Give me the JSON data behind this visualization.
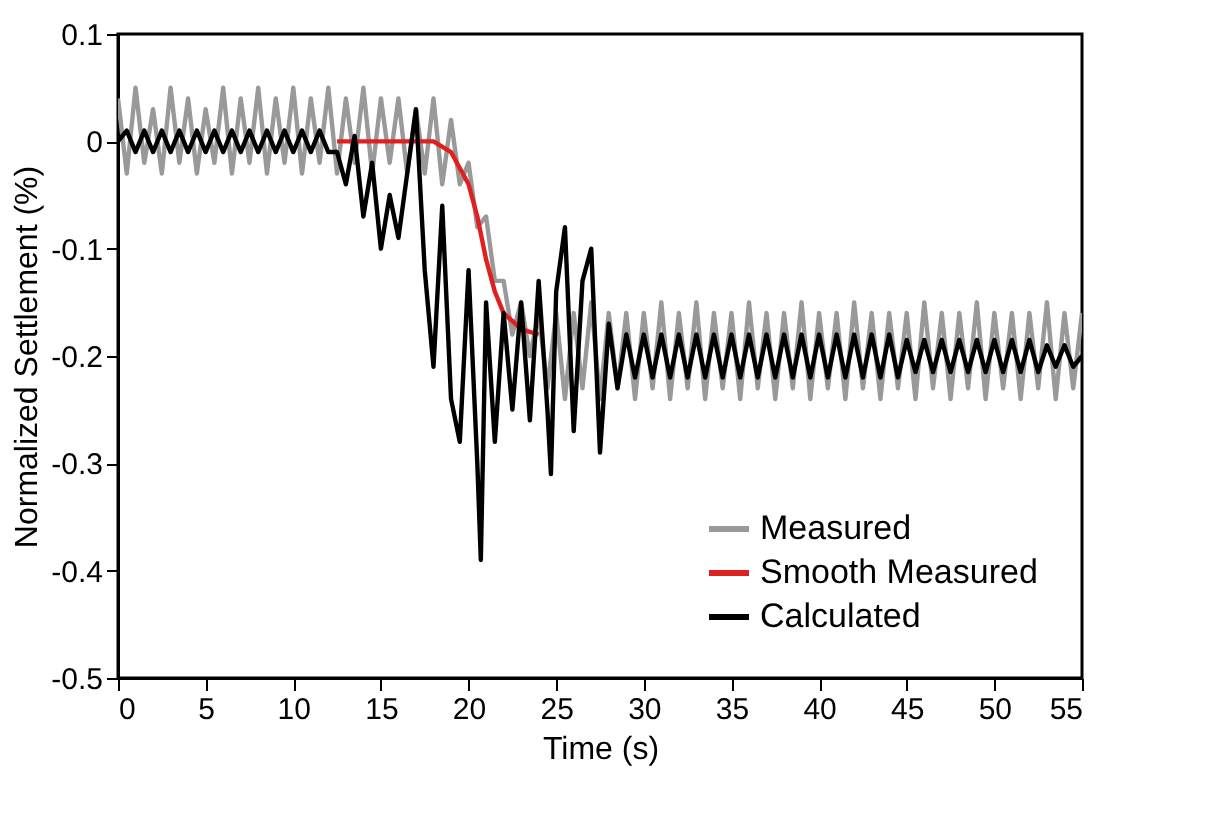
{
  "chart_data": {
    "type": "line",
    "xlabel": "Time (s)",
    "ylabel": "Normalized Settlement (%)",
    "xlim": [
      0,
      55
    ],
    "xticks": [
      0,
      5,
      10,
      15,
      20,
      25,
      30,
      35,
      40,
      45,
      50,
      55
    ],
    "ylim": [
      -0.5,
      0.1
    ],
    "yticks": [
      -0.5,
      -0.4,
      -0.3,
      -0.2,
      -0.1,
      0,
      0.1
    ],
    "grid": false,
    "legend": "bottom right",
    "marker": "none",
    "line_style": "solid",
    "series": [
      {
        "name": "Measured",
        "color": "#999999",
        "x": [
          0,
          0.5,
          1,
          1.5,
          2,
          2.5,
          3,
          3.5,
          4,
          4.5,
          5,
          5.5,
          6,
          6.5,
          7,
          7.5,
          8,
          8.5,
          9,
          9.5,
          10,
          10.5,
          11,
          11.5,
          12,
          12.5,
          13,
          13.5,
          14,
          14.5,
          15,
          15.5,
          16,
          16.5,
          17,
          17.5,
          18,
          18.5,
          19,
          19.5,
          20,
          20.5,
          21,
          21.5,
          22,
          22.5,
          23,
          23.5,
          24,
          24.5,
          25,
          25.5,
          26,
          26.5,
          27,
          27.5,
          28,
          28.5,
          29,
          29.5,
          30,
          30.5,
          31,
          31.5,
          32,
          32.5,
          33,
          33.5,
          34,
          34.5,
          35,
          35.5,
          36,
          36.5,
          37,
          37.5,
          38,
          38.5,
          39,
          39.5,
          40,
          40.5,
          41,
          41.5,
          42,
          42.5,
          43,
          43.5,
          44,
          44.5,
          45,
          45.5,
          46,
          46.5,
          47,
          47.5,
          48,
          48.5,
          49,
          49.5,
          50,
          50.5,
          51,
          51.5,
          52,
          52.5,
          53,
          53.5,
          54,
          54.5,
          55
        ],
        "values": [
          0.04,
          -0.03,
          0.05,
          -0.02,
          0.03,
          -0.03,
          0.05,
          -0.02,
          0.04,
          -0.03,
          0.03,
          -0.02,
          0.05,
          -0.03,
          0.04,
          -0.02,
          0.05,
          -0.03,
          0.04,
          -0.02,
          0.05,
          -0.03,
          0.04,
          -0.02,
          0.05,
          -0.03,
          0.04,
          -0.02,
          0.05,
          -0.03,
          0.04,
          -0.02,
          0.04,
          -0.03,
          0.03,
          -0.03,
          0.04,
          -0.04,
          0.02,
          -0.04,
          -0.02,
          -0.08,
          -0.07,
          -0.13,
          -0.13,
          -0.18,
          -0.15,
          -0.2,
          -0.16,
          -0.23,
          -0.16,
          -0.24,
          -0.16,
          -0.23,
          -0.15,
          -0.24,
          -0.16,
          -0.23,
          -0.16,
          -0.24,
          -0.16,
          -0.23,
          -0.15,
          -0.24,
          -0.16,
          -0.23,
          -0.15,
          -0.24,
          -0.16,
          -0.23,
          -0.16,
          -0.24,
          -0.15,
          -0.23,
          -0.16,
          -0.24,
          -0.16,
          -0.23,
          -0.15,
          -0.24,
          -0.16,
          -0.23,
          -0.16,
          -0.24,
          -0.15,
          -0.23,
          -0.16,
          -0.24,
          -0.16,
          -0.23,
          -0.16,
          -0.24,
          -0.15,
          -0.23,
          -0.16,
          -0.24,
          -0.16,
          -0.23,
          -0.15,
          -0.24,
          -0.16,
          -0.23,
          -0.16,
          -0.24,
          -0.16,
          -0.23,
          -0.15,
          -0.24,
          -0.16,
          -0.23,
          -0.16
        ]
      },
      {
        "name": "Smooth Measured",
        "color": "#e02020",
        "x": [
          12.5,
          18,
          19,
          20,
          20.5,
          21,
          21.5,
          22,
          23,
          24
        ],
        "values": [
          0,
          0,
          -0.01,
          -0.04,
          -0.07,
          -0.11,
          -0.14,
          -0.16,
          -0.175,
          -0.18
        ]
      },
      {
        "name": "Calculated",
        "color": "#000000",
        "x": [
          0,
          0.5,
          1,
          1.5,
          2,
          2.5,
          3,
          3.5,
          4,
          4.5,
          5,
          5.5,
          6,
          6.5,
          7,
          7.5,
          8,
          8.5,
          9,
          9.5,
          10,
          10.5,
          11,
          11.5,
          12,
          12.5,
          13,
          13.5,
          14,
          14.5,
          15,
          15.5,
          16,
          16.5,
          17,
          17.5,
          18,
          18.5,
          19,
          19.5,
          20,
          20.5,
          20.7,
          21,
          21.5,
          22,
          22.5,
          23,
          23.5,
          24,
          24.5,
          24.7,
          25,
          25.5,
          26,
          26.5,
          27,
          27.5,
          28,
          28.5,
          29,
          29.5,
          30,
          30.5,
          31,
          31.5,
          32,
          32.5,
          33,
          33.5,
          34,
          34.5,
          35,
          35.5,
          36,
          36.5,
          37,
          37.5,
          38,
          38.5,
          39,
          39.5,
          40,
          40.5,
          41,
          41.5,
          42,
          42.5,
          43,
          43.5,
          44,
          44.5,
          45,
          45.5,
          46,
          46.5,
          47,
          47.5,
          48,
          48.5,
          49,
          49.5,
          50,
          50.5,
          51,
          51.5,
          52,
          52.5,
          53,
          53.5,
          54,
          54.5,
          55
        ],
        "values": [
          0,
          0.01,
          -0.01,
          0.01,
          -0.01,
          0.01,
          -0.01,
          0.01,
          -0.01,
          0.01,
          -0.01,
          0.01,
          -0.01,
          0.01,
          -0.01,
          0.01,
          -0.01,
          0.01,
          -0.01,
          0.01,
          -0.01,
          0.01,
          -0.01,
          0.01,
          -0.01,
          -0.01,
          -0.04,
          0.005,
          -0.07,
          -0.02,
          -0.1,
          -0.05,
          -0.09,
          -0.03,
          0.03,
          -0.12,
          -0.21,
          -0.06,
          -0.24,
          -0.28,
          -0.12,
          -0.3,
          -0.39,
          -0.15,
          -0.28,
          -0.16,
          -0.25,
          -0.15,
          -0.26,
          -0.13,
          -0.25,
          -0.31,
          -0.14,
          -0.08,
          -0.27,
          -0.13,
          -0.1,
          -0.29,
          -0.17,
          -0.23,
          -0.18,
          -0.22,
          -0.18,
          -0.22,
          -0.18,
          -0.22,
          -0.18,
          -0.22,
          -0.18,
          -0.22,
          -0.18,
          -0.22,
          -0.18,
          -0.22,
          -0.18,
          -0.22,
          -0.18,
          -0.22,
          -0.18,
          -0.22,
          -0.18,
          -0.22,
          -0.18,
          -0.22,
          -0.18,
          -0.22,
          -0.18,
          -0.22,
          -0.18,
          -0.22,
          -0.18,
          -0.22,
          -0.185,
          -0.215,
          -0.185,
          -0.215,
          -0.185,
          -0.215,
          -0.185,
          -0.215,
          -0.185,
          -0.215,
          -0.185,
          -0.215,
          -0.185,
          -0.215,
          -0.185,
          -0.215,
          -0.19,
          -0.21,
          -0.19,
          -0.21,
          -0.2
        ]
      }
    ]
  }
}
